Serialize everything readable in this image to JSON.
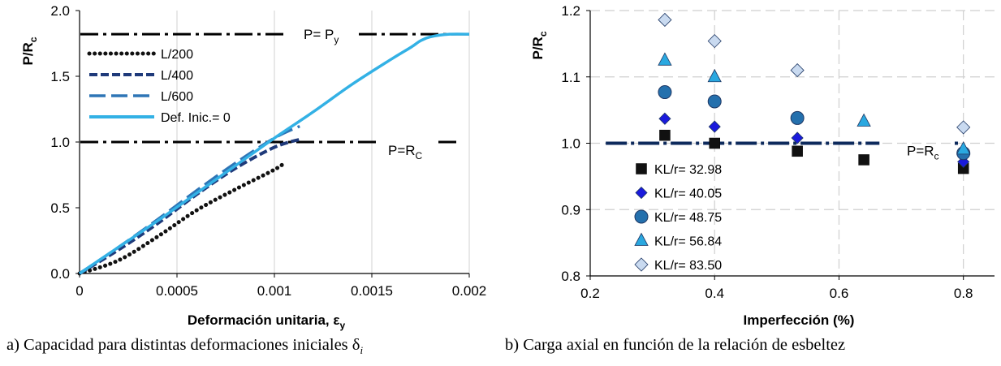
{
  "chart_data": [
    {
      "type": "line",
      "xlabel": "Deformación unitaria, ε",
      "xlabel_sub": "y",
      "ylabel": "P/R",
      "ylabel_sub": "c",
      "xlim": [
        0,
        0.002
      ],
      "ylim": [
        0,
        2.0
      ],
      "x_ticks": [
        "0",
        "0.0005",
        "0.001",
        "0.0015",
        "0.002"
      ],
      "y_ticks": [
        "0.0",
        "0.5",
        "1.0",
        "1.5",
        "2.0"
      ],
      "grid": "vertical",
      "legend": "top-left",
      "series": [
        {
          "name": "L/200",
          "style": "dotted",
          "color": "#111111",
          "x": [
            0,
            0.0002,
            0.0004,
            0.0006,
            0.0008,
            0.001,
            0.00105
          ],
          "y": [
            0,
            0.1,
            0.28,
            0.48,
            0.64,
            0.79,
            0.84
          ]
        },
        {
          "name": "L/400",
          "style": "dashed",
          "color": "#1f3a7a",
          "x": [
            0,
            0.0002,
            0.0004,
            0.0006,
            0.0008,
            0.001,
            0.00113
          ],
          "y": [
            0,
            0.18,
            0.38,
            0.6,
            0.8,
            0.96,
            1.02
          ]
        },
        {
          "name": "L/600",
          "style": "longdash",
          "color": "#2e75b6",
          "x": [
            0,
            0.0002,
            0.0004,
            0.0006,
            0.0008,
            0.001,
            0.00113
          ],
          "y": [
            0,
            0.2,
            0.41,
            0.63,
            0.84,
            1.03,
            1.12
          ]
        },
        {
          "name": "Def. Inic.= 0",
          "style": "solid",
          "color": "#33b1e5",
          "x": [
            0,
            0.0002,
            0.0004,
            0.0006,
            0.0008,
            0.001,
            0.0012,
            0.0014,
            0.0016,
            0.0017,
            0.00175,
            0.0018,
            0.0019,
            0.002
          ],
          "y": [
            0,
            0.2,
            0.4,
            0.61,
            0.82,
            1.03,
            1.23,
            1.44,
            1.63,
            1.72,
            1.77,
            1.8,
            1.82,
            1.82
          ]
        }
      ],
      "reference_lines": [
        {
          "y": 1.82,
          "label": "P= P",
          "label_sub": "y"
        },
        {
          "y": 1.0,
          "label": "P=R",
          "label_sub": "C"
        }
      ],
      "caption": "a) Capacidad para distintas deformaciones iniciales δ",
      "caption_sub": "i"
    },
    {
      "type": "scatter",
      "xlabel": "Imperfección (%)",
      "ylabel": "P/R",
      "ylabel_sub": "c",
      "xlim": [
        0.2,
        0.85
      ],
      "ylim": [
        0.8,
        1.2
      ],
      "x_ticks": [
        "0.2",
        "0.4",
        "0.6",
        "0.8"
      ],
      "y_ticks": [
        "0.8",
        "0.9",
        "1.0",
        "1.1",
        "1.2"
      ],
      "grid": "both-dashed",
      "legend": "bottom-left",
      "series": [
        {
          "name": "KL/r= 32.98",
          "marker": "square",
          "color": "#111111",
          "x": [
            0.32,
            0.4,
            0.533,
            0.64,
            0.8
          ],
          "y": [
            1.012,
            1.0,
            0.988,
            0.975,
            0.962
          ]
        },
        {
          "name": "KL/r= 40.05",
          "marker": "diamond",
          "color": "#1a1adc",
          "x": [
            0.32,
            0.4,
            0.533,
            0.8
          ],
          "y": [
            1.037,
            1.025,
            1.008,
            0.972
          ]
        },
        {
          "name": "KL/r= 48.75",
          "marker": "circle",
          "color": "#2470ad",
          "x": [
            0.32,
            0.4,
            0.533,
            0.8
          ],
          "y": [
            1.077,
            1.063,
            1.038,
            0.985
          ]
        },
        {
          "name": "KL/r= 56.84",
          "marker": "triangle",
          "color": "#2aa8e0",
          "x": [
            0.32,
            0.4,
            0.64,
            0.8
          ],
          "y": [
            1.125,
            1.1,
            1.033,
            0.991
          ]
        },
        {
          "name": "KL/r= 83.50",
          "marker": "diamond",
          "color": "#c9daf0",
          "x": [
            0.32,
            0.4,
            0.533,
            0.8
          ],
          "y": [
            1.186,
            1.154,
            1.11,
            1.024
          ]
        }
      ],
      "reference_lines": [
        {
          "y": 1.0,
          "label": "P=R",
          "label_sub": "c"
        }
      ],
      "caption": "b) Carga axial en función de la relación de esbeltez"
    }
  ]
}
